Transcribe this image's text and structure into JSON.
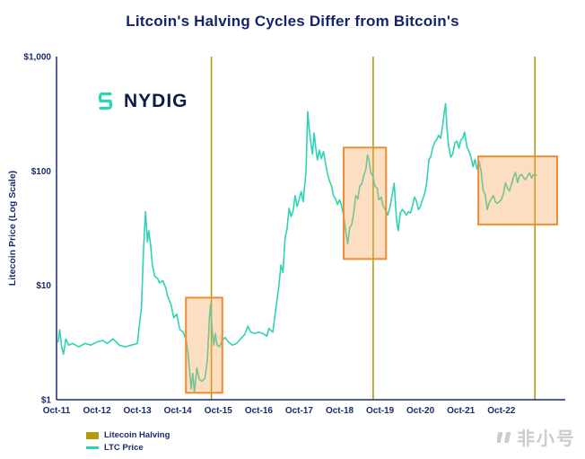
{
  "title": "Litcoin's Halving Cycles Differ from Bitcoin's",
  "logo": {
    "text": "NYDIG",
    "icon_color": "#2cd3b4",
    "text_color": "#0e1b4d"
  },
  "watermark": {
    "text": "非小号",
    "color": "#cccccc"
  },
  "legend": {
    "items": [
      {
        "label": "Litecoin Halving",
        "color": "#b49b0a",
        "shape": "rect"
      },
      {
        "label": "LTC Price",
        "color": "#2cd3b4",
        "shape": "line"
      }
    ]
  },
  "chart_data": {
    "type": "line",
    "title": "Litcoin's Halving Cycles Differ from Bitcoin's",
    "xlabel": "",
    "ylabel": "Litecoin Price (Log Scale)",
    "y_scale": "log",
    "ylim": [
      1,
      1000
    ],
    "xlim": [
      2011.75,
      2024.33
    ],
    "grid": false,
    "legend_position": "bottom-left",
    "axis_color": "#1a2b6d",
    "y_ticks": [
      {
        "value": 1,
        "label": "$1"
      },
      {
        "value": 10,
        "label": "$10"
      },
      {
        "value": 100,
        "label": "$100"
      },
      {
        "value": 1000,
        "label": "$1,000"
      }
    ],
    "x_ticks": [
      {
        "t": 2011.75,
        "label": "Oct-11"
      },
      {
        "t": 2012.75,
        "label": "Oct-12"
      },
      {
        "t": 2013.75,
        "label": "Oct-13"
      },
      {
        "t": 2014.75,
        "label": "Oct-14"
      },
      {
        "t": 2015.75,
        "label": "Oct-15"
      },
      {
        "t": 2016.75,
        "label": "Oct-16"
      },
      {
        "t": 2017.75,
        "label": "Oct-17"
      },
      {
        "t": 2018.75,
        "label": "Oct-18"
      },
      {
        "t": 2019.75,
        "label": "Oct-19"
      },
      {
        "t": 2020.75,
        "label": "Oct-20"
      },
      {
        "t": 2021.75,
        "label": "Oct-21"
      },
      {
        "t": 2022.75,
        "label": "Oct-22"
      }
    ],
    "halvings": {
      "label": "Litecoin Halving",
      "color": "#b49b0a",
      "times": [
        2015.58,
        2019.58,
        2023.58
      ]
    },
    "highlight_windows": {
      "stroke": "#ee8d33",
      "fill": "rgba(246,167,95,0.38)",
      "boxes": [
        [
          2014.95,
          2015.85,
          1.15,
          7.8
        ],
        [
          2018.85,
          2019.9,
          17,
          160
        ],
        [
          2022.18,
          2024.13,
          34,
          134
        ]
      ]
    },
    "series": [
      {
        "name": "LTC Price",
        "color": "#2cd3b4",
        "points": [
          [
            2011.79,
            3.2
          ],
          [
            2011.83,
            4.1
          ],
          [
            2011.87,
            3.0
          ],
          [
            2011.92,
            2.5
          ],
          [
            2011.98,
            3.4
          ],
          [
            2012.05,
            3.0
          ],
          [
            2012.15,
            3.1
          ],
          [
            2012.3,
            2.9
          ],
          [
            2012.45,
            3.1
          ],
          [
            2012.6,
            3.0
          ],
          [
            2012.75,
            3.2
          ],
          [
            2012.9,
            3.3
          ],
          [
            2013.0,
            3.1
          ],
          [
            2013.15,
            3.4
          ],
          [
            2013.3,
            3.0
          ],
          [
            2013.45,
            2.9
          ],
          [
            2013.6,
            3.0
          ],
          [
            2013.75,
            3.1
          ],
          [
            2013.85,
            6.5
          ],
          [
            2013.9,
            20
          ],
          [
            2013.95,
            44
          ],
          [
            2014.0,
            24
          ],
          [
            2014.03,
            30
          ],
          [
            2014.08,
            22
          ],
          [
            2014.12,
            15
          ],
          [
            2014.18,
            12
          ],
          [
            2014.25,
            11.5
          ],
          [
            2014.3,
            10.5
          ],
          [
            2014.38,
            11
          ],
          [
            2014.45,
            9.5
          ],
          [
            2014.5,
            8
          ],
          [
            2014.58,
            6.8
          ],
          [
            2014.65,
            5.2
          ],
          [
            2014.72,
            5.6
          ],
          [
            2014.8,
            4.1
          ],
          [
            2014.88,
            3.9
          ],
          [
            2014.95,
            3.4
          ],
          [
            2015.0,
            2.6
          ],
          [
            2015.04,
            1.8
          ],
          [
            2015.08,
            1.25
          ],
          [
            2015.12,
            1.7
          ],
          [
            2015.16,
            1.15
          ],
          [
            2015.22,
            1.9
          ],
          [
            2015.28,
            1.5
          ],
          [
            2015.35,
            1.45
          ],
          [
            2015.42,
            1.55
          ],
          [
            2015.48,
            2.2
          ],
          [
            2015.53,
            5.2
          ],
          [
            2015.56,
            6.9
          ],
          [
            2015.6,
            4.0
          ],
          [
            2015.64,
            3.0
          ],
          [
            2015.68,
            3.8
          ],
          [
            2015.72,
            3.0
          ],
          [
            2015.78,
            2.9
          ],
          [
            2015.85,
            3.3
          ],
          [
            2015.92,
            3.5
          ],
          [
            2016.0,
            3.2
          ],
          [
            2016.1,
            3.0
          ],
          [
            2016.2,
            3.1
          ],
          [
            2016.3,
            3.4
          ],
          [
            2016.4,
            3.7
          ],
          [
            2016.48,
            4.4
          ],
          [
            2016.55,
            3.9
          ],
          [
            2016.65,
            3.8
          ],
          [
            2016.75,
            3.9
          ],
          [
            2016.85,
            3.8
          ],
          [
            2016.95,
            3.6
          ],
          [
            2017.0,
            4.2
          ],
          [
            2017.1,
            3.9
          ],
          [
            2017.18,
            6.5
          ],
          [
            2017.25,
            10
          ],
          [
            2017.3,
            15
          ],
          [
            2017.35,
            13
          ],
          [
            2017.4,
            26
          ],
          [
            2017.45,
            31
          ],
          [
            2017.5,
            47
          ],
          [
            2017.55,
            40
          ],
          [
            2017.6,
            45
          ],
          [
            2017.65,
            61
          ],
          [
            2017.7,
            49
          ],
          [
            2017.75,
            56
          ],
          [
            2017.8,
            66
          ],
          [
            2017.85,
            54
          ],
          [
            2017.88,
            70
          ],
          [
            2017.92,
            100
          ],
          [
            2017.96,
            330
          ],
          [
            2018.0,
            230
          ],
          [
            2018.04,
            175
          ],
          [
            2018.08,
            140
          ],
          [
            2018.12,
            215
          ],
          [
            2018.16,
            160
          ],
          [
            2018.2,
            125
          ],
          [
            2018.25,
            152
          ],
          [
            2018.3,
            128
          ],
          [
            2018.35,
            148
          ],
          [
            2018.4,
            118
          ],
          [
            2018.45,
            94
          ],
          [
            2018.5,
            82
          ],
          [
            2018.55,
            74
          ],
          [
            2018.6,
            61
          ],
          [
            2018.65,
            57
          ],
          [
            2018.7,
            51
          ],
          [
            2018.75,
            56
          ],
          [
            2018.8,
            49
          ],
          [
            2018.85,
            41
          ],
          [
            2018.9,
            30
          ],
          [
            2018.95,
            23
          ],
          [
            2019.0,
            32
          ],
          [
            2019.05,
            34
          ],
          [
            2019.1,
            43
          ],
          [
            2019.15,
            61
          ],
          [
            2019.2,
            57
          ],
          [
            2019.25,
            74
          ],
          [
            2019.3,
            77
          ],
          [
            2019.35,
            92
          ],
          [
            2019.4,
            103
          ],
          [
            2019.44,
            138
          ],
          [
            2019.48,
            122
          ],
          [
            2019.52,
            97
          ],
          [
            2019.58,
            89
          ],
          [
            2019.62,
            74
          ],
          [
            2019.68,
            71
          ],
          [
            2019.72,
            56
          ],
          [
            2019.78,
            59
          ],
          [
            2019.82,
            50
          ],
          [
            2019.88,
            46
          ],
          [
            2019.94,
            41
          ],
          [
            2020.0,
            49
          ],
          [
            2020.05,
            62
          ],
          [
            2020.1,
            78
          ],
          [
            2020.16,
            36
          ],
          [
            2020.2,
            30
          ],
          [
            2020.25,
            43
          ],
          [
            2020.3,
            46
          ],
          [
            2020.35,
            44
          ],
          [
            2020.4,
            41
          ],
          [
            2020.45,
            44
          ],
          [
            2020.5,
            43
          ],
          [
            2020.55,
            49
          ],
          [
            2020.6,
            59
          ],
          [
            2020.65,
            55
          ],
          [
            2020.7,
            46
          ],
          [
            2020.75,
            49
          ],
          [
            2020.8,
            56
          ],
          [
            2020.85,
            63
          ],
          [
            2020.9,
            77
          ],
          [
            2020.96,
            126
          ],
          [
            2021.0,
            132
          ],
          [
            2021.05,
            158
          ],
          [
            2021.1,
            178
          ],
          [
            2021.15,
            188
          ],
          [
            2021.2,
            205
          ],
          [
            2021.25,
            193
          ],
          [
            2021.3,
            252
          ],
          [
            2021.34,
            330
          ],
          [
            2021.37,
            388
          ],
          [
            2021.4,
            255
          ],
          [
            2021.44,
            172
          ],
          [
            2021.5,
            132
          ],
          [
            2021.55,
            141
          ],
          [
            2021.6,
            176
          ],
          [
            2021.65,
            182
          ],
          [
            2021.7,
            158
          ],
          [
            2021.75,
            186
          ],
          [
            2021.8,
            196
          ],
          [
            2021.84,
            218
          ],
          [
            2021.9,
            162
          ],
          [
            2021.95,
            149
          ],
          [
            2022.0,
            131
          ],
          [
            2022.05,
            109
          ],
          [
            2022.1,
            126
          ],
          [
            2022.15,
            104
          ],
          [
            2022.2,
            121
          ],
          [
            2022.25,
            99
          ],
          [
            2022.3,
            68
          ],
          [
            2022.35,
            62
          ],
          [
            2022.4,
            46
          ],
          [
            2022.45,
            53
          ],
          [
            2022.5,
            57
          ],
          [
            2022.55,
            61
          ],
          [
            2022.6,
            54
          ],
          [
            2022.65,
            52
          ],
          [
            2022.7,
            54
          ],
          [
            2022.75,
            56
          ],
          [
            2022.8,
            63
          ],
          [
            2022.85,
            79
          ],
          [
            2022.9,
            71
          ],
          [
            2022.95,
            67
          ],
          [
            2023.0,
            76
          ],
          [
            2023.05,
            89
          ],
          [
            2023.1,
            97
          ],
          [
            2023.15,
            79
          ],
          [
            2023.2,
            91
          ],
          [
            2023.25,
            93
          ],
          [
            2023.3,
            87
          ],
          [
            2023.35,
            84
          ],
          [
            2023.4,
            91
          ],
          [
            2023.45,
            96
          ],
          [
            2023.5,
            87
          ],
          [
            2023.55,
            93
          ],
          [
            2023.62,
            92
          ]
        ]
      }
    ]
  }
}
